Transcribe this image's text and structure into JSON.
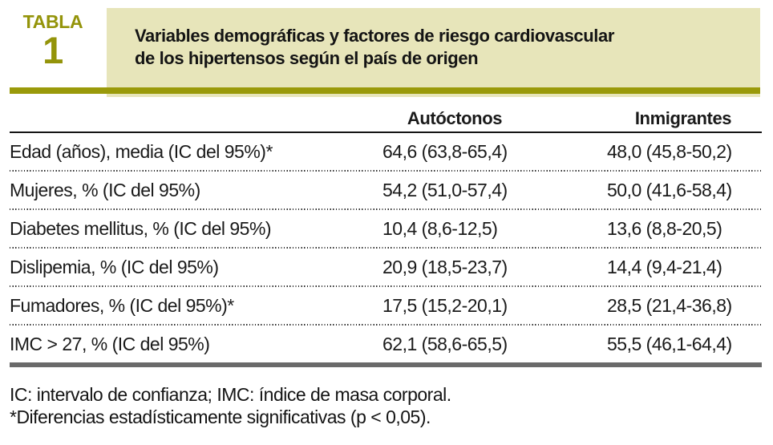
{
  "table_label": {
    "word": "TABLA",
    "number": "1"
  },
  "title": {
    "line1": "Variables demográficas y factores de riesgo cardiovascular",
    "line2": "de los hipertensos según el país de origen"
  },
  "columns": {
    "col1": "Autóctonos",
    "col2": "Inmigrantes"
  },
  "rows": [
    {
      "label": "Edad (años), media (IC del 95%)*",
      "autoctonos": "64,6 (63,8-65,4)",
      "inmigrantes": "48,0 (45,8-50,2)"
    },
    {
      "label": "Mujeres, % (IC del 95%)",
      "autoctonos": "54,2 (51,0-57,4)",
      "inmigrantes": "50,0 (41,6-58,4)"
    },
    {
      "label": "Diabetes mellitus, % (IC del 95%)",
      "autoctonos": "10,4 (8,6-12,5)",
      "inmigrantes": "13,6 (8,8-20,5)"
    },
    {
      "label": "Dislipemia, % (IC del 95%)",
      "autoctonos": "20,9 (18,5-23,7)",
      "inmigrantes": "14,4 (9,4-21,4)"
    },
    {
      "label": "Fumadores, % (IC del 95%)*",
      "autoctonos": "17,5 (15,2-20,1)",
      "inmigrantes": "28,5 (21,4-36,8)"
    },
    {
      "label": "IMC > 27, % (IC del 95%)",
      "autoctonos": "62,1 (58,6-65,5)",
      "inmigrantes": "55,5 (46,1-64,4)"
    }
  ],
  "footnotes": {
    "abbreviations": "IC: intervalo de confianza; IMC: índice de masa corporal.",
    "significance": "*Diferencias estadísticamente significativas (p < 0,05)."
  },
  "colors": {
    "olive": "#9a9a0a",
    "banner_background": "#e7e5ba",
    "bottom_rule_gray": "#6a6a6a",
    "text": "#1a1a1a"
  }
}
